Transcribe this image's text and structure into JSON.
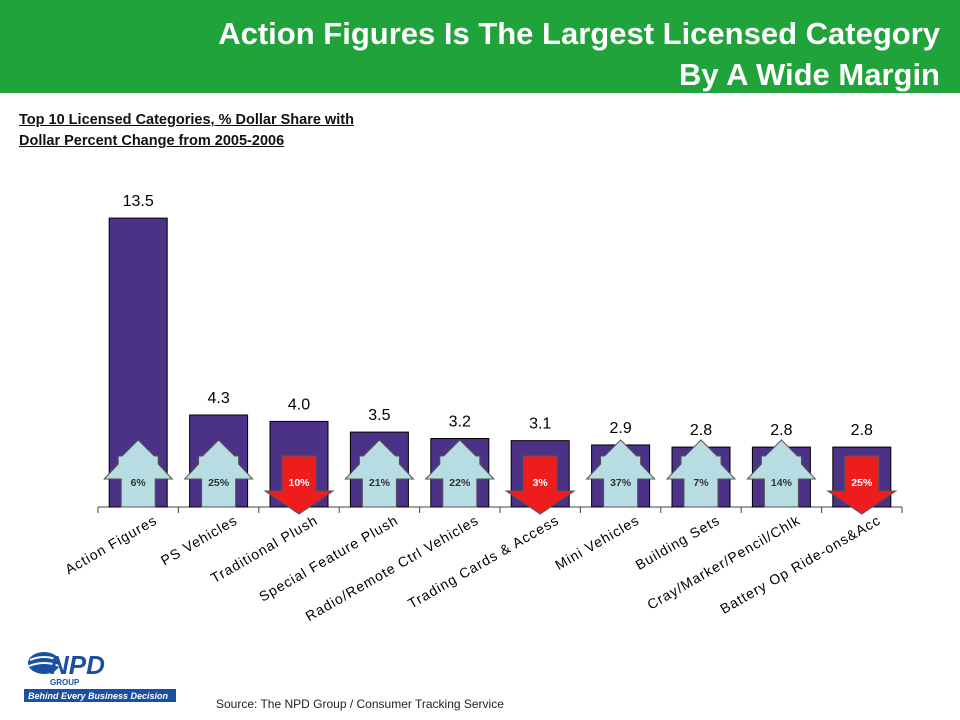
{
  "header": {
    "title_line1": "Action Figures Is The Largest Licensed Category",
    "title_line2": "By A Wide Margin"
  },
  "subtitle": {
    "line1": "Top 10 Licensed Categories, % Dollar Share with",
    "line2": "Dollar Percent Change from 2005-2006"
  },
  "colors": {
    "banner": "#20a33a",
    "bar": "#4b3287",
    "up_arrow": "#b7dde3",
    "down_arrow": "#ee1c1c"
  },
  "chart_data": {
    "type": "bar",
    "categories": [
      "Action Figures",
      "PS Vehicles",
      "Traditional Plush",
      "Special Feature Plush",
      "Radio/Remote Ctrl Vehicles",
      "Trading Cards & Access",
      "Mini Vehicles",
      "Building Sets",
      "Cray/Marker/Pencil/Chlk",
      "Battery Op Ride-ons&Acc"
    ],
    "values": [
      13.5,
      4.3,
      4.0,
      3.5,
      3.2,
      3.1,
      2.9,
      2.8,
      2.8,
      2.8
    ],
    "value_labels": [
      "13.5",
      "4.3",
      "4.0",
      "3.5",
      "3.2",
      "3.1",
      "2.9",
      "2.8",
      "2.8",
      "2.8"
    ],
    "changes": [
      {
        "label": "6%",
        "direction": "up"
      },
      {
        "label": "25%",
        "direction": "up"
      },
      {
        "label": "10%",
        "direction": "down"
      },
      {
        "label": "21%",
        "direction": "up"
      },
      {
        "label": "22%",
        "direction": "up"
      },
      {
        "label": "3%",
        "direction": "down"
      },
      {
        "label": "37%",
        "direction": "up"
      },
      {
        "label": "7%",
        "direction": "up"
      },
      {
        "label": "14%",
        "direction": "up"
      },
      {
        "label": "25%",
        "direction": "down"
      }
    ],
    "ylim": [
      0,
      15
    ],
    "grid": false
  },
  "logo": {
    "brand": "NPD",
    "sub": "GROUP",
    "tagline": "Behind Every Business Decision"
  },
  "source": "Source:  The NPD Group / Consumer Tracking Service"
}
